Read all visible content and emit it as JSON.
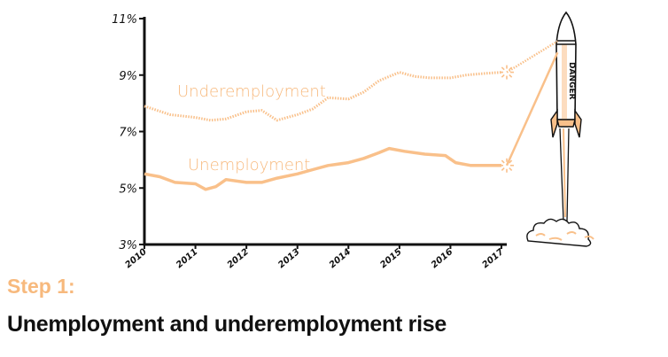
{
  "step_label": "Step 1:",
  "title": "Unemployment and underemployment rise",
  "rocket_label": "DANGER",
  "chart_data": {
    "type": "line",
    "xlabel": "",
    "ylabel": "",
    "xlim": [
      2010,
      2017
    ],
    "ylim": [
      3,
      11
    ],
    "x_ticks": [
      "2010",
      "2011",
      "2012",
      "2013",
      "2014",
      "2015",
      "2016",
      "2017"
    ],
    "y_ticks": [
      "3%",
      "5%",
      "7%",
      "9%",
      "11%"
    ],
    "grid": false,
    "colors": {
      "series": "#f9c08a",
      "axis": "#111111"
    },
    "series": [
      {
        "name": "Underemployment",
        "style": "dotted",
        "x": [
          2010,
          2010.5,
          2011,
          2011.3,
          2011.6,
          2012,
          2012.3,
          2012.6,
          2013,
          2013.3,
          2013.6,
          2014,
          2014.3,
          2014.6,
          2015,
          2015.3,
          2015.6,
          2016,
          2016.3,
          2016.6,
          2017
        ],
        "values": [
          7.9,
          7.6,
          7.5,
          7.4,
          7.45,
          7.7,
          7.75,
          7.4,
          7.6,
          7.8,
          8.2,
          8.15,
          8.4,
          8.8,
          9.1,
          8.95,
          8.9,
          8.9,
          9.0,
          9.05,
          9.1
        ],
        "projection": {
          "x": 2018.1,
          "value": 10.2
        }
      },
      {
        "name": "Unemployment",
        "style": "solid",
        "x": [
          2010,
          2010.3,
          2010.6,
          2011,
          2011.2,
          2011.4,
          2011.6,
          2012,
          2012.3,
          2012.6,
          2013,
          2013.3,
          2013.6,
          2014,
          2014.3,
          2014.6,
          2014.8,
          2015.1,
          2015.5,
          2015.9,
          2016.1,
          2016.4,
          2017
        ],
        "values": [
          5.5,
          5.4,
          5.2,
          5.15,
          4.95,
          5.05,
          5.3,
          5.2,
          5.2,
          5.35,
          5.5,
          5.65,
          5.8,
          5.9,
          6.05,
          6.25,
          6.4,
          6.3,
          6.2,
          6.15,
          5.9,
          5.8,
          5.8
        ],
        "projection": {
          "x": 2018.1,
          "value": 9.8
        }
      }
    ]
  }
}
